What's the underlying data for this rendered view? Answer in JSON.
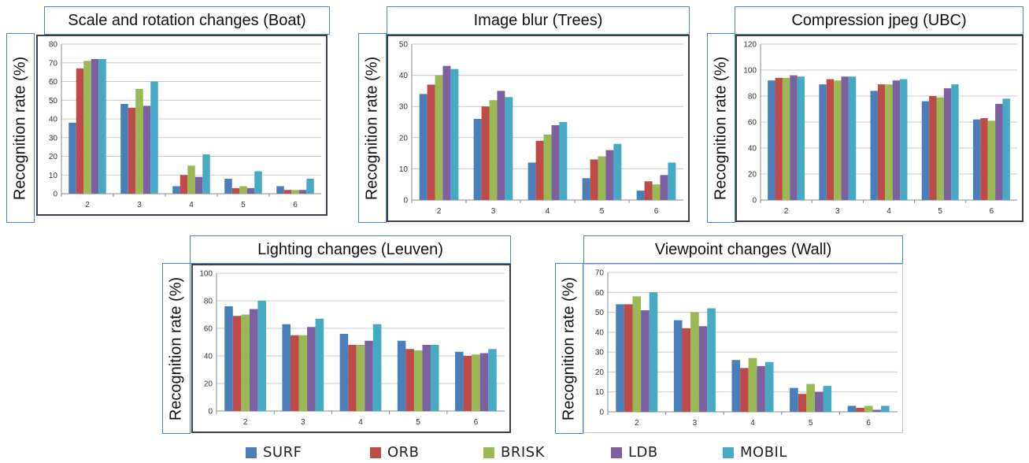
{
  "ylabel": "Recognition rate (%)",
  "legend": [
    {
      "name": "SURF",
      "color": "#4a7ebb"
    },
    {
      "name": "ORB",
      "color": "#be4b48"
    },
    {
      "name": "BRISK",
      "color": "#98b954"
    },
    {
      "name": "LDB",
      "color": "#7d60a0"
    },
    {
      "name": "MOBIL",
      "color": "#46aac5"
    }
  ],
  "chart_data": [
    {
      "type": "bar",
      "title": "Scale and rotation changes (Boat)",
      "ylabel": "Recognition rate (%)",
      "categories": [
        "2",
        "3",
        "4",
        "5",
        "6"
      ],
      "ylim": [
        0,
        80
      ],
      "yticks": [
        0,
        10,
        20,
        30,
        40,
        50,
        60,
        70,
        80
      ],
      "grid": true,
      "series": [
        {
          "name": "SURF",
          "values": [
            38,
            48,
            4,
            8,
            4
          ]
        },
        {
          "name": "ORB",
          "values": [
            67,
            46,
            10,
            3,
            2
          ]
        },
        {
          "name": "BRISK",
          "values": [
            71,
            56,
            15,
            4,
            2
          ]
        },
        {
          "name": "LDB",
          "values": [
            72,
            47,
            9,
            3,
            2
          ]
        },
        {
          "name": "MOBIL",
          "values": [
            72,
            60,
            21,
            12,
            8
          ]
        }
      ]
    },
    {
      "type": "bar",
      "title": "Image blur (Trees)",
      "ylabel": "Recognition rate (%)",
      "categories": [
        "2",
        "3",
        "4",
        "5",
        "6"
      ],
      "ylim": [
        0,
        50
      ],
      "yticks": [
        0,
        10,
        20,
        30,
        40,
        50
      ],
      "grid": true,
      "series": [
        {
          "name": "SURF",
          "values": [
            34,
            26,
            12,
            7,
            3
          ]
        },
        {
          "name": "ORB",
          "values": [
            37,
            30,
            19,
            13,
            6
          ]
        },
        {
          "name": "BRISK",
          "values": [
            40,
            32,
            21,
            14,
            5
          ]
        },
        {
          "name": "LDB",
          "values": [
            43,
            35,
            24,
            16,
            8
          ]
        },
        {
          "name": "MOBIL",
          "values": [
            42,
            33,
            25,
            18,
            12
          ]
        }
      ]
    },
    {
      "type": "bar",
      "title": "Compression jpeg (UBC)",
      "ylabel": "Recognition rate (%)",
      "categories": [
        "2",
        "3",
        "4",
        "5",
        "6"
      ],
      "ylim": [
        0,
        120
      ],
      "yticks": [
        0,
        20,
        40,
        60,
        80,
        100,
        120
      ],
      "grid": true,
      "series": [
        {
          "name": "SURF",
          "values": [
            92,
            89,
            84,
            76,
            62
          ]
        },
        {
          "name": "ORB",
          "values": [
            94,
            93,
            89,
            80,
            63
          ]
        },
        {
          "name": "BRISK",
          "values": [
            94,
            92,
            89,
            79,
            61
          ]
        },
        {
          "name": "LDB",
          "values": [
            96,
            95,
            92,
            86,
            74
          ]
        },
        {
          "name": "MOBIL",
          "values": [
            95,
            95,
            93,
            89,
            78
          ]
        }
      ]
    },
    {
      "type": "bar",
      "title": "Lighting changes (Leuven)",
      "ylabel": "Recognition rate (%)",
      "categories": [
        "2",
        "3",
        "4",
        "5",
        "6"
      ],
      "ylim": [
        0,
        100
      ],
      "yticks": [
        0,
        20,
        40,
        60,
        80,
        100
      ],
      "grid": true,
      "series": [
        {
          "name": "SURF",
          "values": [
            76,
            63,
            56,
            51,
            43
          ]
        },
        {
          "name": "ORB",
          "values": [
            69,
            55,
            48,
            45,
            40
          ]
        },
        {
          "name": "BRISK",
          "values": [
            70,
            55,
            48,
            44,
            41
          ]
        },
        {
          "name": "LDB",
          "values": [
            74,
            61,
            51,
            48,
            42
          ]
        },
        {
          "name": "MOBIL",
          "values": [
            80,
            67,
            63,
            48,
            45
          ]
        }
      ]
    },
    {
      "type": "bar",
      "title": "Viewpoint changes (Wall)",
      "ylabel": "Recognition rate (%)",
      "categories": [
        "2",
        "3",
        "4",
        "5",
        "6"
      ],
      "ylim": [
        0,
        70
      ],
      "yticks": [
        0,
        10,
        20,
        30,
        40,
        50,
        60,
        70
      ],
      "grid": true,
      "series": [
        {
          "name": "SURF",
          "values": [
            54,
            46,
            26,
            12,
            3
          ]
        },
        {
          "name": "ORB",
          "values": [
            54,
            42,
            22,
            9,
            2
          ]
        },
        {
          "name": "BRISK",
          "values": [
            58,
            50,
            27,
            14,
            3
          ]
        },
        {
          "name": "LDB",
          "values": [
            51,
            43,
            23,
            10,
            1
          ]
        },
        {
          "name": "MOBIL",
          "values": [
            60,
            52,
            25,
            13,
            3
          ]
        }
      ]
    }
  ]
}
